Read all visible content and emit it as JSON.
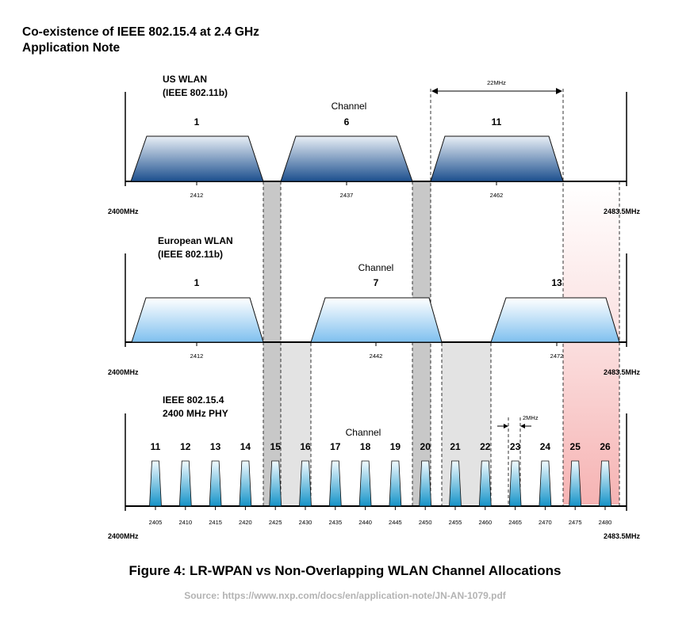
{
  "header": {
    "line1": "Co-existence of IEEE 802.15.4 at 2.4 GHz",
    "line2": "Application Note"
  },
  "panels": {
    "us": {
      "title1": "US WLAN",
      "title2": "(IEEE 802.11b)",
      "channel_label": "Channel",
      "channels": [
        {
          "number": "1",
          "center": "2412"
        },
        {
          "number": "6",
          "center": "2437"
        },
        {
          "number": "11",
          "center": "2462"
        }
      ],
      "bandwidth_label": "22MHz",
      "axis_start": "2400MHz",
      "axis_end": "2483.5MHz"
    },
    "eu": {
      "title1": "European WLAN",
      "title2": "(IEEE 802.11b)",
      "channel_label": "Channel",
      "channels": [
        {
          "number": "1",
          "center": "2412"
        },
        {
          "number": "7",
          "center": "2442"
        },
        {
          "number": "13",
          "center": "2472"
        }
      ],
      "axis_start": "2400MHz",
      "axis_end": "2483.5MHz"
    },
    "zigbee": {
      "title1": "IEEE 802.15.4",
      "title2": "2400 MHz PHY",
      "channel_label": "Channel",
      "channels": [
        {
          "number": "11",
          "center": "2405"
        },
        {
          "number": "12",
          "center": "2410"
        },
        {
          "number": "13",
          "center": "2415"
        },
        {
          "number": "14",
          "center": "2420"
        },
        {
          "number": "15",
          "center": "2425"
        },
        {
          "number": "16",
          "center": "2430"
        },
        {
          "number": "17",
          "center": "2435"
        },
        {
          "number": "18",
          "center": "2440"
        },
        {
          "number": "19",
          "center": "2445"
        },
        {
          "number": "20",
          "center": "2450"
        },
        {
          "number": "21",
          "center": "2455"
        },
        {
          "number": "22",
          "center": "2460"
        },
        {
          "number": "23",
          "center": "2465"
        },
        {
          "number": "24",
          "center": "2470"
        },
        {
          "number": "25",
          "center": "2475"
        },
        {
          "number": "26",
          "center": "2480"
        }
      ],
      "bandwidth_label": "2MHz",
      "axis_start": "2400MHz",
      "axis_end": "2483.5MHz"
    }
  },
  "caption": "Figure 4: LR-WPAN vs Non-Overlapping WLAN Channel Allocations",
  "source": "Source: https://www.nxp.com/docs/en/application-note/JN-AN-1079.pdf",
  "colors": {
    "us_band_top": "#e9eff6",
    "us_band_bottom": "#1c4f8e",
    "eu_band_top": "#ffffff",
    "eu_band_bottom": "#7fc0ef",
    "zigbee_top": "#f2fbff",
    "zigbee_bottom": "#1593c8",
    "dark_gap": "#c8c8c8",
    "light_gap": "#e3e3e3",
    "pink_region": "#f8bdbd"
  }
}
